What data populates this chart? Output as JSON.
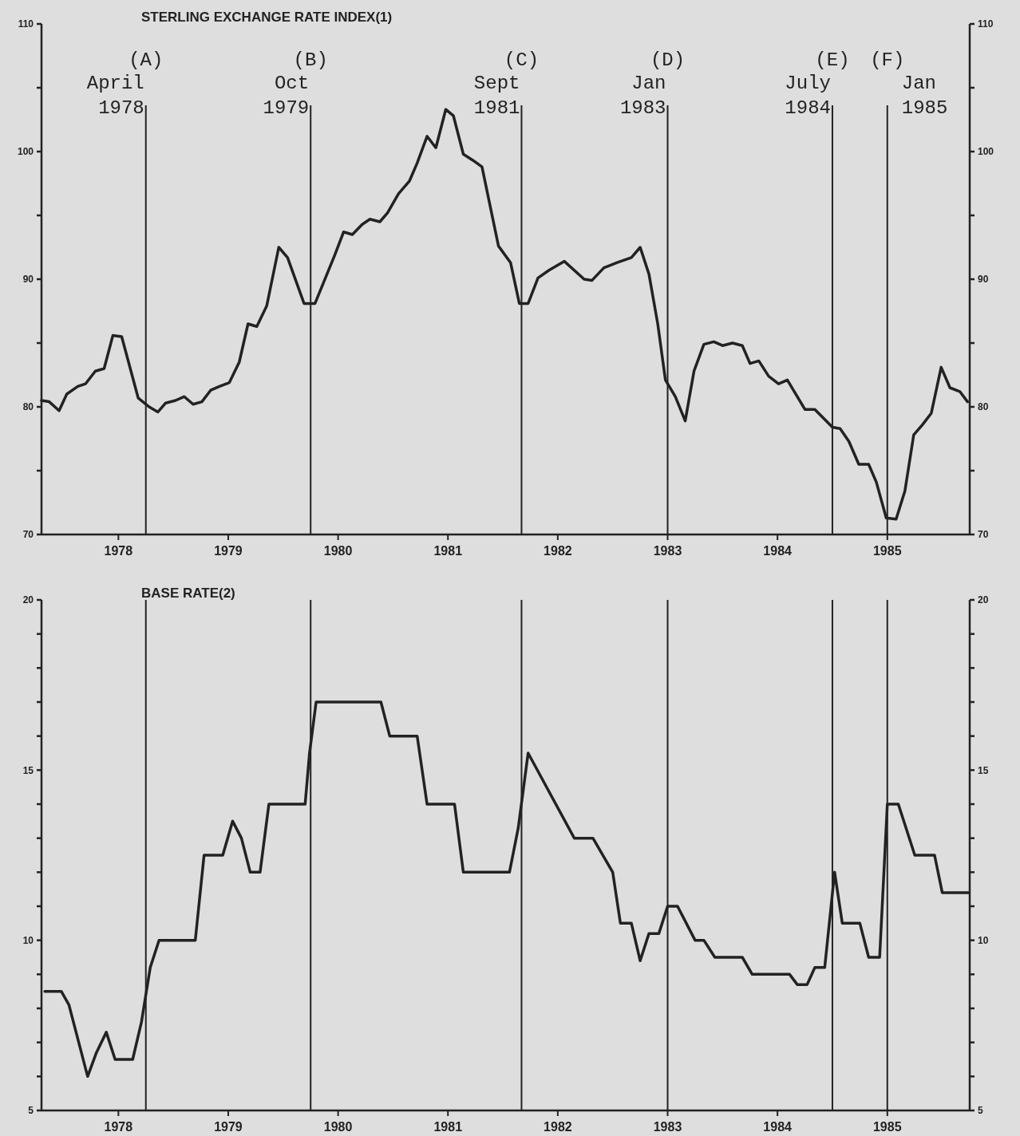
{
  "chart_data": [
    {
      "type": "line",
      "title": "STERLING EXCHANGE RATE INDEX(1)",
      "line_style": "solid",
      "xlim": [
        1977.3,
        1985.75
      ],
      "xticks": [
        1978,
        1979,
        1980,
        1981,
        1982,
        1983,
        1984,
        1985
      ],
      "ylim": [
        70,
        110
      ],
      "yticks": [
        70,
        {
          "value": 75,
          "label": null
        },
        80,
        {
          "value": 85,
          "label": null
        },
        90,
        {
          "value": 95,
          "label": null
        },
        100,
        {
          "value": 105,
          "label": null
        },
        110
      ],
      "y2lim": [
        70,
        110
      ],
      "y2ticks": [
        70,
        {
          "value": 75,
          "label": null
        },
        80,
        {
          "value": 85,
          "label": null
        },
        90,
        {
          "value": 95,
          "label": null
        },
        100,
        {
          "value": 105,
          "label": null
        },
        110
      ],
      "series": [
        {
          "color": "#222222",
          "x": [
            1977.3,
            1977.37,
            1977.46,
            1977.53,
            1977.63,
            1977.7,
            1977.79,
            1977.87,
            1977.95,
            1978.03,
            1978.18,
            1978.28,
            1978.36,
            1978.43,
            1978.52,
            1978.6,
            1978.68,
            1978.76,
            1978.84,
            1978.92,
            1979.01,
            1979.1,
            1979.18,
            1979.26,
            1979.35,
            1979.46,
            1979.54,
            1979.69,
            1979.79,
            1979.97,
            1980.05,
            1980.13,
            1980.22,
            1980.29,
            1980.38,
            1980.45,
            1980.55,
            1980.65,
            1980.72,
            1980.81,
            1980.89,
            1980.98,
            1981.05,
            1981.14,
            1981.23,
            1981.31,
            1981.46,
            1981.57,
            1981.65,
            1981.73,
            1981.82,
            1981.92,
            1982.06,
            1982.24,
            1982.31,
            1982.42,
            1982.54,
            1982.67,
            1982.75,
            1982.83,
            1982.91,
            1982.98,
            1983.07,
            1983.16,
            1983.24,
            1983.33,
            1983.42,
            1983.5,
            1983.59,
            1983.68,
            1983.75,
            1983.83,
            1983.92,
            1984.01,
            1984.09,
            1984.25,
            1984.34,
            1984.5,
            1984.57,
            1984.65,
            1984.74,
            1984.83,
            1984.9,
            1984.99,
            1985.08,
            1985.16,
            1985.24,
            1985.32,
            1985.4,
            1985.49,
            1985.57,
            1985.66,
            1985.73
          ],
          "values": [
            80.5,
            80.4,
            79.7,
            81.0,
            81.6,
            81.8,
            82.8,
            83.0,
            85.6,
            85.5,
            80.7,
            80.0,
            79.6,
            80.3,
            80.5,
            80.8,
            80.2,
            80.4,
            81.3,
            81.6,
            81.9,
            83.5,
            86.5,
            86.3,
            87.9,
            92.5,
            91.7,
            88.1,
            88.1,
            91.9,
            93.7,
            93.5,
            94.3,
            94.7,
            94.5,
            95.2,
            96.7,
            97.7,
            99.1,
            101.2,
            100.3,
            103.3,
            102.8,
            99.8,
            99.3,
            98.8,
            92.6,
            91.3,
            88.1,
            88.1,
            90.1,
            90.7,
            91.4,
            90.0,
            89.9,
            90.9,
            91.3,
            91.7,
            92.5,
            90.4,
            86.5,
            82.1,
            80.8,
            78.9,
            82.8,
            84.9,
            85.1,
            84.8,
            85.0,
            84.8,
            83.4,
            83.6,
            82.4,
            81.8,
            82.1,
            79.8,
            79.8,
            78.4,
            78.3,
            77.3,
            75.5,
            75.5,
            74.1,
            71.3,
            71.2,
            73.4,
            77.8,
            78.6,
            79.5,
            83.1,
            81.5,
            81.2,
            80.4
          ]
        }
      ],
      "ref_lines": [
        {
          "axis": "x",
          "value": 1978.25,
          "label": "(A)\nApril\n1978"
        },
        {
          "axis": "x",
          "value": 1979.75,
          "label": "(B)\nOct\n1979"
        },
        {
          "axis": "x",
          "value": 1981.67,
          "label": "(C)\nSept\n1981"
        },
        {
          "axis": "x",
          "value": 1983,
          "label": "(D)\nJan\n1983"
        },
        {
          "axis": "x",
          "value": 1984.5,
          "label": "(E)\nJuly\n1984"
        },
        {
          "axis": "x",
          "value": 1985,
          "label": "(F)\nJan\n1985"
        }
      ]
    },
    {
      "type": "line",
      "title": "BASE RATE(2)",
      "line_style": "solid",
      "xlim": [
        1977.3,
        1985.75
      ],
      "xticks": [
        1978,
        1979,
        1980,
        1981,
        1982,
        1983,
        1984,
        1985
      ],
      "ylim": [
        5,
        20
      ],
      "yticks": [
        5,
        {
          "value": 6,
          "label": null
        },
        {
          "value": 7,
          "label": null
        },
        {
          "value": 8,
          "label": null
        },
        {
          "value": 9,
          "label": null
        },
        10,
        {
          "value": 11,
          "label": null
        },
        {
          "value": 12,
          "label": null
        },
        {
          "value": 13,
          "label": null
        },
        {
          "value": 14,
          "label": null
        },
        15,
        {
          "value": 16,
          "label": null
        },
        {
          "value": 17,
          "label": null
        },
        {
          "value": 18,
          "label": null
        },
        {
          "value": 19,
          "label": null
        },
        20
      ],
      "y2lim": [
        5,
        20
      ],
      "y2ticks": [
        5,
        {
          "value": 6,
          "label": null
        },
        {
          "value": 7,
          "label": null
        },
        {
          "value": 8,
          "label": null
        },
        {
          "value": 9,
          "label": null
        },
        10,
        {
          "value": 11,
          "label": null
        },
        {
          "value": 12,
          "label": null
        },
        {
          "value": 13,
          "label": null
        },
        {
          "value": 14,
          "label": null
        },
        15,
        {
          "value": 16,
          "label": null
        },
        {
          "value": 17,
          "label": null
        },
        {
          "value": 18,
          "label": null
        },
        {
          "value": 19,
          "label": null
        },
        20
      ],
      "series": [
        {
          "color": "#222222",
          "x": [
            1977.33,
            1977.48,
            1977.55,
            1977.72,
            1977.8,
            1977.89,
            1977.97,
            1978.13,
            1978.21,
            1978.29,
            1978.37,
            1978.7,
            1978.78,
            1978.95,
            1979.04,
            1979.12,
            1979.2,
            1979.29,
            1979.37,
            1979.7,
            1979.74,
            1979.8,
            1980.39,
            1980.47,
            1980.72,
            1980.81,
            1981.06,
            1981.14,
            1981.56,
            1981.64,
            1981.73,
            1982.15,
            1982.32,
            1982.5,
            1982.57,
            1982.67,
            1982.75,
            1982.83,
            1982.92,
            1983.0,
            1983.09,
            1983.25,
            1983.33,
            1983.43,
            1983.68,
            1983.77,
            1984.11,
            1984.18,
            1984.27,
            1984.34,
            1984.43,
            1984.52,
            1984.59,
            1984.75,
            1984.83,
            1984.93,
            1985.0,
            1985.1,
            1985.25,
            1985.43,
            1985.5,
            1985.74
          ],
          "values": [
            8.5,
            8.5,
            8.1,
            6.0,
            6.7,
            7.3,
            6.5,
            6.5,
            7.6,
            9.2,
            10.0,
            10.0,
            12.5,
            12.5,
            13.5,
            13.0,
            12.0,
            12.0,
            14.0,
            14.0,
            15.5,
            17.0,
            17.0,
            16.0,
            16.0,
            14.0,
            14.0,
            12.0,
            12.0,
            13.3,
            15.5,
            13.0,
            13.0,
            12.0,
            10.5,
            10.5,
            9.4,
            10.2,
            10.2,
            11.0,
            11.0,
            10.0,
            10.0,
            9.5,
            9.5,
            9.0,
            9.0,
            8.7,
            8.7,
            9.2,
            9.2,
            12.0,
            10.5,
            10.5,
            9.5,
            9.5,
            14.0,
            14.0,
            12.5,
            12.5,
            11.4,
            11.4
          ]
        }
      ],
      "ref_lines": [
        {
          "axis": "x",
          "value": 1978.25
        },
        {
          "axis": "x",
          "value": 1979.75
        },
        {
          "axis": "x",
          "value": 1981.67
        },
        {
          "axis": "x",
          "value": 1983
        },
        {
          "axis": "x",
          "value": 1984.5
        },
        {
          "axis": "x",
          "value": 1985
        }
      ]
    }
  ]
}
